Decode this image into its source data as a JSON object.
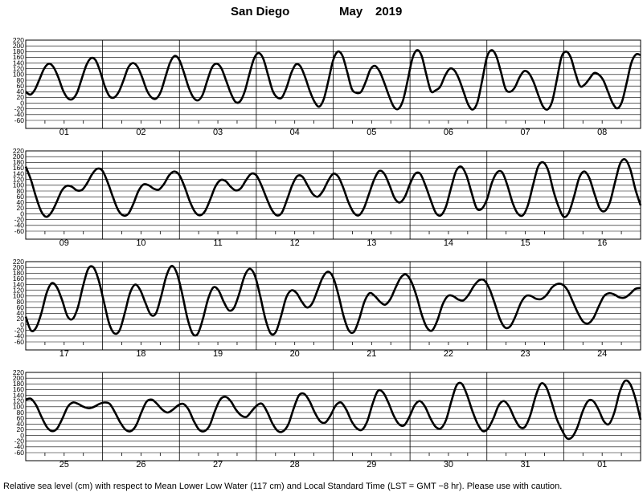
{
  "header": {
    "station": "San Diego",
    "month": "May",
    "year": "2019"
  },
  "footnote": "Relative sea level (cm) with respect to Mean Lower Low Water (117 cm) and Local Standard Time (LST = GMT −8 hr). Please use with caution.",
  "chart_data": {
    "type": "line",
    "title": "San Diego May 2019",
    "xlabel": "",
    "ylabel": "",
    "ylim": [
      -60,
      220
    ],
    "y_ticks": [
      220,
      200,
      180,
      160,
      140,
      120,
      100,
      80,
      60,
      40,
      20,
      0,
      -20,
      -40,
      -60
    ],
    "grid": true,
    "sample_interval_hours": 2,
    "panels": [
      {
        "days": [
          "01",
          "02",
          "03",
          "04",
          "05",
          "06",
          "07",
          "08"
        ],
        "series": [
          {
            "values": [
              40,
              30,
              48,
              85,
              122,
              138,
              125,
              90,
              45,
              18,
              14,
              36,
              84,
              132,
              157,
              150,
              110,
              58,
              24,
              20,
              40,
              80,
              124,
              140,
              127,
              90,
              45,
              20,
              16,
              40,
              92,
              142,
              165,
              150,
              105,
              54,
              20,
              10,
              30,
              80,
              125,
              138,
              122,
              80,
              36,
              5,
              6,
              40,
              100,
              155,
              175,
              155,
              100,
              44,
              20,
              20,
              55,
              105,
              135,
              128,
              90,
              42,
              5,
              -12,
              15,
              80,
              150,
              180,
              165,
              110,
              50,
              36,
              40,
              75,
              118,
              130,
              110,
              70,
              25,
              -12,
              -20,
              10,
              80,
              155,
              185,
              165,
              100,
              42,
              45,
              58,
              95,
              120,
              115,
              85,
              40,
              -5,
              -22,
              5,
              80,
              160,
              185,
              165,
              110,
              50,
              40,
              55,
              90,
              112,
              105,
              75,
              30,
              -10,
              -22,
              5,
              80,
              160,
              180,
              160,
              105,
              60,
              65,
              85,
              105,
              100,
              80,
              40,
              0,
              -18,
              5,
              70,
              140,
              170,
              168
            ]
          }
        ]
      },
      {
        "days": [
          "09",
          "10",
          "11",
          "12",
          "13",
          "14",
          "15",
          "16"
        ],
        "series": [
          {
            "values": [
              165,
              120,
              60,
              10,
              -10,
              5,
              40,
              80,
              98,
              95,
              82,
              84,
              108,
              140,
              158,
              150,
              110,
              60,
              15,
              -5,
              0,
              35,
              80,
              103,
              100,
              88,
              85,
              105,
              135,
              148,
              135,
              95,
              45,
              8,
              -5,
              10,
              50,
              95,
              118,
              115,
              95,
              82,
              90,
              118,
              140,
              135,
              100,
              55,
              15,
              -5,
              5,
              50,
              100,
              132,
              130,
              100,
              70,
              60,
              80,
              115,
              140,
              130,
              90,
              40,
              5,
              -5,
              20,
              70,
              120,
              150,
              140,
              100,
              55,
              40,
              60,
              105,
              140,
              140,
              100,
              50,
              5,
              -5,
              25,
              90,
              150,
              165,
              135,
              75,
              20,
              18,
              50,
              110,
              145,
              145,
              100,
              40,
              2,
              -5,
              30,
              100,
              165,
              180,
              150,
              80,
              25,
              -10,
              5,
              60,
              125,
              148,
              125,
              70,
              20,
              10,
              40,
              110,
              175,
              190,
              155,
              85,
              30
            ]
          }
        ]
      },
      {
        "days": [
          "17",
          "18",
          "19",
          "20",
          "21",
          "22",
          "23",
          "24"
        ],
        "series": [
          {
            "values": [
              28,
              -20,
              -10,
              40,
              110,
              145,
              130,
              85,
              30,
              20,
              60,
              135,
              195,
              200,
              155,
              80,
              5,
              -30,
              -20,
              40,
              110,
              140,
              120,
              75,
              35,
              40,
              100,
              170,
              205,
              180,
              110,
              25,
              -30,
              -32,
              20,
              90,
              130,
              120,
              80,
              50,
              60,
              110,
              170,
              195,
              170,
              100,
              20,
              -30,
              -25,
              30,
              95,
              120,
              110,
              80,
              60,
              75,
              120,
              165,
              185,
              165,
              105,
              30,
              -20,
              -25,
              20,
              80,
              110,
              100,
              80,
              70,
              90,
              130,
              165,
              175,
              150,
              100,
              35,
              -10,
              -20,
              15,
              70,
              100,
              100,
              88,
              85,
              105,
              135,
              155,
              155,
              125,
              75,
              20,
              -10,
              -5,
              30,
              75,
              100,
              100,
              90,
              90,
              105,
              130,
              142,
              140,
              120,
              80,
              40,
              10,
              5,
              25,
              65,
              100,
              110,
              105,
              95,
              95,
              108,
              125,
              128
            ]
          }
        ]
      },
      {
        "days": [
          "25",
          "26",
          "27",
          "28",
          "29",
          "30",
          "31",
          "01"
        ],
        "series": [
          {
            "values": [
              125,
              128,
              105,
              65,
              30,
              15,
              25,
              60,
              100,
              115,
              110,
              100,
              95,
              100,
              110,
              115,
              110,
              80,
              45,
              20,
              15,
              35,
              80,
              118,
              125,
              110,
              90,
              80,
              90,
              105,
              110,
              90,
              50,
              20,
              15,
              35,
              85,
              125,
              135,
              120,
              90,
              70,
              65,
              85,
              105,
              110,
              80,
              40,
              15,
              15,
              40,
              95,
              140,
              145,
              120,
              80,
              50,
              45,
              70,
              105,
              115,
              90,
              50,
              25,
              20,
              50,
              110,
              155,
              150,
              115,
              70,
              40,
              35,
              65,
              105,
              120,
              100,
              60,
              30,
              25,
              55,
              120,
              175,
              180,
              140,
              85,
              40,
              15,
              25,
              60,
              105,
              120,
              100,
              60,
              30,
              30,
              70,
              135,
              180,
              170,
              120,
              60,
              20,
              -10,
              -5,
              30,
              85,
              120,
              120,
              90,
              50,
              40,
              80,
              150,
              190,
              180,
              130,
              55
            ]
          }
        ]
      }
    ]
  }
}
